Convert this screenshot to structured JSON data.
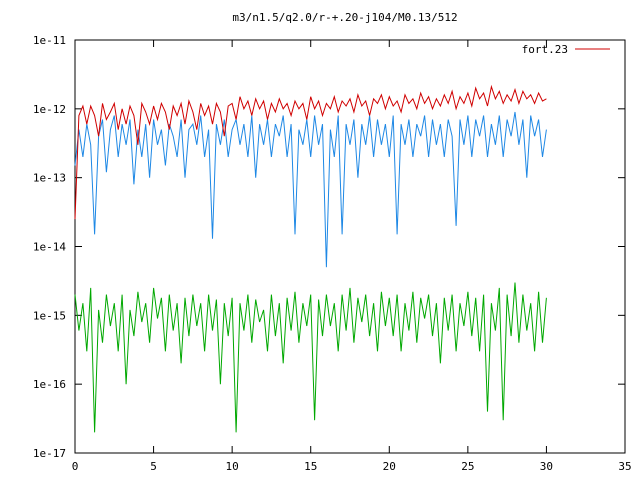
{
  "chart_data": {
    "type": "line",
    "title": "m3/n1.5/q2.0/r-+.20-j104/M0.13/512",
    "xlabel": "",
    "ylabel": "",
    "xlim": [
      0,
      35
    ],
    "ylim": [
      1e-17,
      1e-11
    ],
    "yscale": "log",
    "x_ticks": [
      0,
      5,
      10,
      15,
      20,
      25,
      30,
      35
    ],
    "x_tick_labels": [
      "0",
      "5",
      "10",
      "15",
      "20",
      "25",
      "30",
      "35"
    ],
    "y_ticks": [
      1e-17,
      1e-16,
      1e-15,
      1e-14,
      1e-13,
      1e-12,
      1e-11
    ],
    "y_tick_labels": [
      "1e-17",
      "1e-16",
      "1e-15",
      "1e-14",
      "1e-13",
      "1e-12",
      "1e-11"
    ],
    "legend_position": "top-right",
    "grid": false,
    "series": [
      {
        "name": "fort.23",
        "color": "#d00000",
        "x": [
          0,
          0.25,
          0.5,
          0.75,
          1,
          1.25,
          1.5,
          1.75,
          2,
          2.25,
          2.5,
          2.75,
          3,
          3.25,
          3.5,
          3.75,
          4,
          4.25,
          4.5,
          4.75,
          5,
          5.25,
          5.5,
          5.75,
          6,
          6.25,
          6.5,
          6.75,
          7,
          7.25,
          7.5,
          7.75,
          8,
          8.25,
          8.5,
          8.75,
          9,
          9.25,
          9.5,
          9.75,
          10,
          10.25,
          10.5,
          10.75,
          11,
          11.25,
          11.5,
          11.75,
          12,
          12.25,
          12.5,
          12.75,
          13,
          13.25,
          13.5,
          13.75,
          14,
          14.25,
          14.5,
          14.75,
          15,
          15.25,
          15.5,
          15.75,
          16,
          16.25,
          16.5,
          16.75,
          17,
          17.25,
          17.5,
          17.75,
          18,
          18.25,
          18.5,
          18.75,
          19,
          19.25,
          19.5,
          19.75,
          20,
          20.25,
          20.5,
          20.75,
          21,
          21.25,
          21.5,
          21.75,
          22,
          22.25,
          22.5,
          22.75,
          23,
          23.25,
          23.5,
          23.75,
          24,
          24.25,
          24.5,
          24.75,
          25,
          25.25,
          25.5,
          25.75,
          26,
          26.25,
          26.5,
          26.75,
          27,
          27.25,
          27.5,
          27.75,
          28,
          28.25,
          28.5,
          28.75,
          29,
          29.25,
          29.5,
          29.75,
          30
        ],
        "y": [
          2.5e-14,
          8e-13,
          1.1e-12,
          6e-13,
          1.1e-12,
          8e-13,
          4e-13,
          1.2e-12,
          7e-13,
          9e-13,
          1.2e-12,
          5e-13,
          1e-12,
          6e-13,
          1.1e-12,
          8e-13,
          3e-13,
          1.2e-12,
          9e-13,
          6e-13,
          1.1e-12,
          7e-13,
          1.2e-12,
          9e-13,
          5e-13,
          1.1e-12,
          8e-13,
          1.2e-12,
          6e-13,
          1.3e-12,
          9e-13,
          5e-13,
          1.2e-12,
          8e-13,
          1.1e-12,
          6e-13,
          1.2e-12,
          9e-13,
          4e-13,
          1.1e-12,
          1.2e-12,
          7e-13,
          1.5e-12,
          1e-12,
          1.3e-12,
          8e-13,
          1.4e-12,
          1e-12,
          1.3e-12,
          7e-13,
          1.2e-12,
          9e-13,
          1.4e-12,
          1e-12,
          1.2e-12,
          8e-13,
          1.3e-12,
          1e-12,
          1.2e-12,
          7e-13,
          1.5e-12,
          1e-12,
          1.3e-12,
          8e-13,
          1.2e-12,
          1e-12,
          1.5e-12,
          9e-13,
          1.3e-12,
          1.1e-12,
          1.4e-12,
          9e-13,
          1.6e-12,
          1.1e-12,
          1.3e-12,
          8e-13,
          1.4e-12,
          1.2e-12,
          1.6e-12,
          1e-12,
          1.5e-12,
          1.1e-12,
          1.3e-12,
          9e-13,
          1.6e-12,
          1.2e-12,
          1.4e-12,
          1e-12,
          1.7e-12,
          1.2e-12,
          1.5e-12,
          1e-12,
          1.4e-12,
          1.1e-12,
          1.6e-12,
          1.2e-12,
          1.8e-12,
          1e-12,
          1.5e-12,
          1.2e-12,
          1.7e-12,
          1.1e-12,
          2e-12,
          1.4e-12,
          1.7e-12,
          1.1e-12,
          2.1e-12,
          1.4e-12,
          1.8e-12,
          1.2e-12,
          1.6e-12,
          1.3e-12,
          1.9e-12,
          1.2e-12,
          1.8e-12,
          1.4e-12,
          1.6e-12,
          1.2e-12,
          1.7e-12,
          1.3e-12,
          1.4e-12
        ]
      },
      {
        "name": "",
        "color": "#1e88e5",
        "x": [
          0,
          0.25,
          0.5,
          0.75,
          1,
          1.25,
          1.5,
          1.75,
          2,
          2.25,
          2.5,
          2.75,
          3,
          3.25,
          3.5,
          3.75,
          4,
          4.25,
          4.5,
          4.75,
          5,
          5.25,
          5.5,
          5.75,
          6,
          6.25,
          6.5,
          6.75,
          7,
          7.25,
          7.5,
          7.75,
          8,
          8.25,
          8.5,
          8.75,
          9,
          9.25,
          9.5,
          9.75,
          10,
          10.25,
          10.5,
          10.75,
          11,
          11.25,
          11.5,
          11.75,
          12,
          12.25,
          12.5,
          12.75,
          13,
          13.25,
          13.5,
          13.75,
          14,
          14.25,
          14.5,
          14.75,
          15,
          15.25,
          15.5,
          15.75,
          16,
          16.25,
          16.5,
          16.75,
          17,
          17.25,
          17.5,
          17.75,
          18,
          18.25,
          18.5,
          18.75,
          19,
          19.25,
          19.5,
          19.75,
          20,
          20.25,
          20.5,
          20.75,
          21,
          21.25,
          21.5,
          21.75,
          22,
          22.25,
          22.5,
          22.75,
          23,
          23.25,
          23.5,
          23.75,
          24,
          24.25,
          24.5,
          24.75,
          25,
          25.25,
          25.5,
          25.75,
          26,
          26.25,
          26.5,
          26.75,
          27,
          27.25,
          27.5,
          27.75,
          28,
          28.25,
          28.5,
          28.75,
          29,
          29.25,
          29.5,
          29.75,
          30
        ],
        "y": [
          1.5e-13,
          5e-13,
          2e-13,
          6e-13,
          3e-13,
          1.5e-14,
          4e-13,
          7e-13,
          1.2e-13,
          5e-13,
          8e-13,
          2e-13,
          6e-13,
          3e-13,
          7e-13,
          8e-14,
          5e-13,
          2e-13,
          6e-13,
          1e-13,
          7e-13,
          3e-13,
          5e-13,
          1.5e-13,
          6e-13,
          4e-13,
          2e-13,
          7e-13,
          1e-13,
          5e-13,
          6e-13,
          3e-13,
          8e-13,
          2e-13,
          5e-13,
          1.3e-14,
          6e-13,
          3e-13,
          7e-13,
          2e-13,
          5e-13,
          7e-13,
          3e-13,
          6e-13,
          2e-13,
          8e-13,
          1e-13,
          6e-13,
          3e-13,
          7e-13,
          2e-13,
          6e-13,
          4e-13,
          8e-13,
          2e-13,
          6e-13,
          1.5e-14,
          5e-13,
          3e-13,
          7e-13,
          2e-13,
          8e-13,
          3e-13,
          6e-13,
          5e-15,
          5e-13,
          2e-13,
          8e-13,
          1.5e-14,
          6e-13,
          3e-13,
          7e-13,
          1e-13,
          6e-13,
          3e-13,
          8e-13,
          2e-13,
          7e-13,
          3e-13,
          6e-13,
          2e-13,
          8e-13,
          1.5e-14,
          6e-13,
          3e-13,
          7e-13,
          2e-13,
          6e-13,
          4e-13,
          8e-13,
          2e-13,
          7e-13,
          3e-13,
          6e-13,
          2e-13,
          7e-13,
          4e-13,
          2e-14,
          7e-13,
          3e-13,
          8e-13,
          2e-13,
          7e-13,
          4e-13,
          8e-13,
          2e-13,
          6e-13,
          3e-13,
          8e-13,
          2e-13,
          7e-13,
          4e-13,
          9e-13,
          3e-13,
          7e-13,
          1e-13,
          8e-13,
          4e-13,
          7e-13,
          2e-13,
          5e-13
        ]
      },
      {
        "name": "",
        "color": "#00a800",
        "x": [
          0,
          0.25,
          0.5,
          0.75,
          1,
          1.25,
          1.5,
          1.75,
          2,
          2.25,
          2.5,
          2.75,
          3,
          3.25,
          3.5,
          3.75,
          4,
          4.25,
          4.5,
          4.75,
          5,
          5.25,
          5.5,
          5.75,
          6,
          6.25,
          6.5,
          6.75,
          7,
          7.25,
          7.5,
          7.75,
          8,
          8.25,
          8.5,
          8.75,
          9,
          9.25,
          9.5,
          9.75,
          10,
          10.25,
          10.5,
          10.75,
          11,
          11.25,
          11.5,
          11.75,
          12,
          12.25,
          12.5,
          12.75,
          13,
          13.25,
          13.5,
          13.75,
          14,
          14.25,
          14.5,
          14.75,
          15,
          15.25,
          15.5,
          15.75,
          16,
          16.25,
          16.5,
          16.75,
          17,
          17.25,
          17.5,
          17.75,
          18,
          18.25,
          18.5,
          18.75,
          19,
          19.25,
          19.5,
          19.75,
          20,
          20.25,
          20.5,
          20.75,
          21,
          21.25,
          21.5,
          21.75,
          22,
          22.25,
          22.5,
          22.75,
          23,
          23.25,
          23.5,
          23.75,
          24,
          24.25,
          24.5,
          24.75,
          25,
          25.25,
          25.5,
          25.75,
          26,
          26.25,
          26.5,
          26.75,
          27,
          27.25,
          27.5,
          27.75,
          28,
          28.25,
          28.5,
          28.75,
          29,
          29.25,
          29.5,
          29.75,
          30
        ],
        "y": [
          2e-15,
          6e-16,
          1.5e-15,
          3e-16,
          2.5e-15,
          2e-17,
          1.2e-15,
          4e-16,
          2e-15,
          7e-16,
          1.5e-15,
          3e-16,
          2e-15,
          1e-16,
          1.2e-15,
          5e-16,
          2.2e-15,
          8e-16,
          1.5e-15,
          4e-16,
          2.5e-15,
          9e-16,
          1.8e-15,
          3e-16,
          2e-15,
          6e-16,
          1.5e-15,
          2e-16,
          1.8e-15,
          5e-16,
          2e-15,
          7e-16,
          1.5e-15,
          3e-16,
          2e-15,
          6e-16,
          1.7e-15,
          1e-16,
          1.5e-15,
          5e-16,
          1.8e-15,
          2e-17,
          1.5e-15,
          6e-16,
          2e-15,
          4e-16,
          1.7e-15,
          8e-16,
          1.2e-15,
          3e-16,
          2e-15,
          5e-16,
          1.5e-15,
          2e-16,
          1.8e-15,
          6e-16,
          2.2e-15,
          4e-16,
          1.5e-15,
          7e-16,
          2e-15,
          3e-17,
          1.7e-15,
          5e-16,
          2e-15,
          7e-16,
          1.5e-15,
          3e-16,
          2e-15,
          6e-16,
          2.5e-15,
          4e-16,
          1.8e-15,
          8e-16,
          2e-15,
          5e-16,
          1.5e-15,
          3e-16,
          2.2e-15,
          7e-16,
          1.8e-15,
          5e-16,
          2e-15,
          3e-16,
          1.5e-15,
          6e-16,
          2.2e-15,
          4e-16,
          1.8e-15,
          9e-16,
          2e-15,
          5e-16,
          1.5e-15,
          2e-16,
          1.8e-15,
          6e-16,
          2e-15,
          3e-16,
          1.5e-15,
          7e-16,
          2.2e-15,
          5e-16,
          1.8e-15,
          3e-16,
          2e-15,
          4e-17,
          1.5e-15,
          6e-16,
          2.5e-15,
          3e-17,
          2e-15,
          5e-16,
          3e-15,
          4e-16,
          2e-15,
          6e-16,
          1.5e-15,
          3e-16,
          2.2e-15,
          4e-16,
          1.8e-15
        ]
      }
    ]
  }
}
